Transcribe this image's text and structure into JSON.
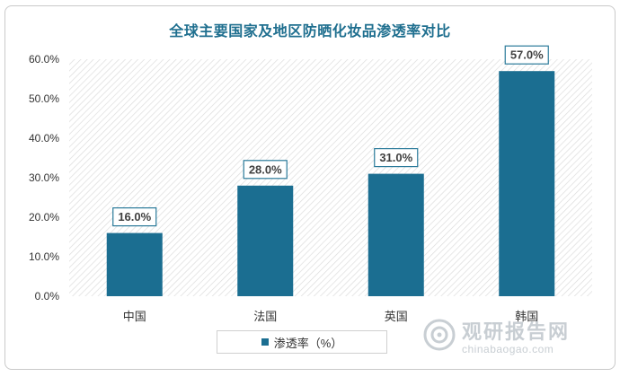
{
  "chart_data": {
    "type": "bar",
    "title": "全球主要国家及地区防晒化妆品渗透率对比",
    "categories": [
      "中国",
      "法国",
      "英国",
      "韩国"
    ],
    "series": [
      {
        "name": "渗透率（%）",
        "values": [
          16.0,
          28.0,
          31.0,
          57.0
        ]
      }
    ],
    "data_labels": [
      "16.0%",
      "28.0%",
      "31.0%",
      "57.0%"
    ],
    "yticks": [
      "0.0%",
      "10.0%",
      "20.0%",
      "30.0%",
      "40.0%",
      "50.0%",
      "60.0%"
    ],
    "ylim": [
      0,
      60
    ],
    "xlabel": "",
    "ylabel": "",
    "legend_position": "bottom",
    "grid": false,
    "bar_color": "#1b6e91",
    "title_color": "#1f6f8f"
  },
  "watermark": {
    "cn": "观研报告网",
    "en": "chinabaogao.com"
  }
}
